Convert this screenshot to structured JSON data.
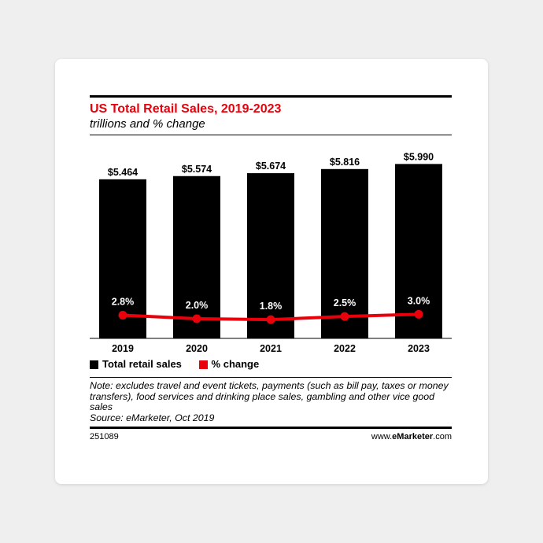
{
  "chart_data": {
    "type": "bar",
    "title": "US Total Retail Sales, 2019-2023",
    "subtitle": "trillions and % change",
    "categories": [
      "2019",
      "2020",
      "2021",
      "2022",
      "2023"
    ],
    "series": [
      {
        "name": "Total retail sales",
        "type": "bar",
        "values": [
          5.464,
          5.574,
          5.674,
          5.816,
          5.99
        ],
        "labels": [
          "$5.464",
          "$5.574",
          "$5.674",
          "$5.816",
          "$5.990"
        ],
        "color": "#000000"
      },
      {
        "name": "% change",
        "type": "line",
        "values": [
          2.8,
          2.0,
          1.8,
          2.5,
          3.0
        ],
        "labels": [
          "2.8%",
          "2.0%",
          "1.8%",
          "2.5%",
          "3.0%"
        ],
        "color": "#e8000b"
      }
    ],
    "grid": false,
    "legend_position": "bottom-left"
  },
  "legend": {
    "bars_label": "Total retail sales",
    "line_label": "% change"
  },
  "note": {
    "text": "Note: excludes travel and event tickets, payments (such as bill pay, taxes or money transfers), food services and drinking place sales, gambling and other vice good sales",
    "source": "Source: eMarketer, Oct 2019"
  },
  "footer": {
    "id": "251089",
    "brand_prefix": "www.",
    "brand_name": "eMarketer",
    "brand_suffix": ".com"
  },
  "colors": {
    "title": "#e8000b",
    "bar": "#000000",
    "line": "#e8000b"
  }
}
